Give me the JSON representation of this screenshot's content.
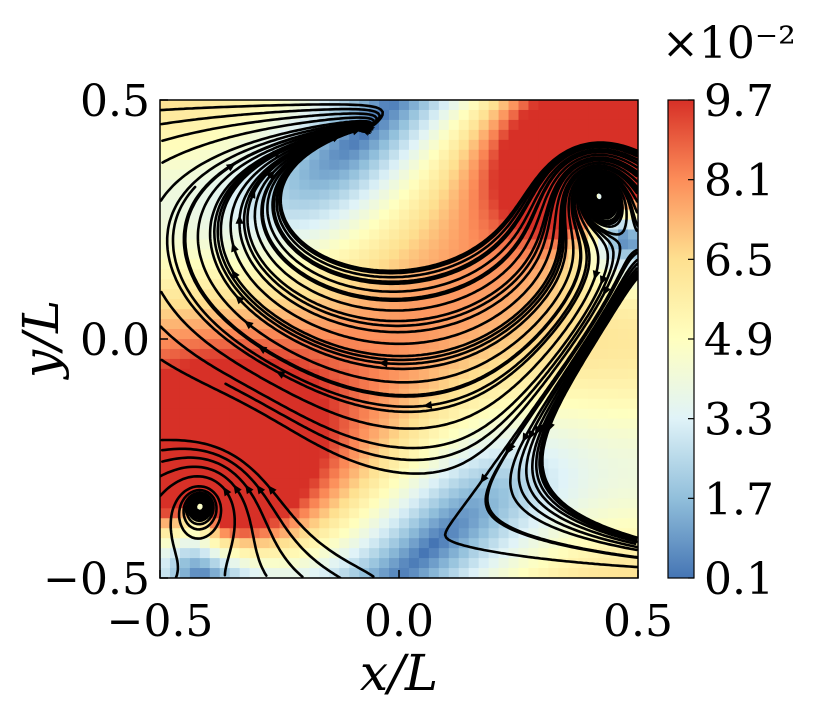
{
  "chart_data": {
    "type": "heatmap",
    "subtype": "streamplot over speed field",
    "title": "",
    "xlabel": "x/L",
    "ylabel": "y/L",
    "xlim": [
      -0.5,
      0.5
    ],
    "ylim": [
      -0.5,
      0.5
    ],
    "xticks": [
      "−0.5",
      "0.0",
      "0.5"
    ],
    "yticks": [
      "−0.5",
      "0.0",
      "0.5"
    ],
    "colorbar": {
      "label": "",
      "scale_label": "×10⁻²",
      "range": [
        0.1,
        9.7
      ],
      "ticks": [
        "0.1",
        "1.7",
        "3.3",
        "4.9",
        "6.5",
        "8.1",
        "9.7"
      ],
      "tick_values": [
        0.1,
        1.7,
        3.3,
        4.9,
        6.5,
        8.1,
        9.7
      ],
      "colormap": [
        "#4575b4",
        "#91bfdb",
        "#e0f3f8",
        "#ffffbf",
        "#fee090",
        "#fc8d59",
        "#d73027"
      ]
    },
    "vortices": [
      {
        "x": 0.41,
        "y": 0.32,
        "sense": "counter-clockwise"
      },
      {
        "x": -0.41,
        "y": -0.33,
        "sense": "counter-clockwise"
      }
    ],
    "grid": false,
    "streamline_color": "#000000"
  }
}
